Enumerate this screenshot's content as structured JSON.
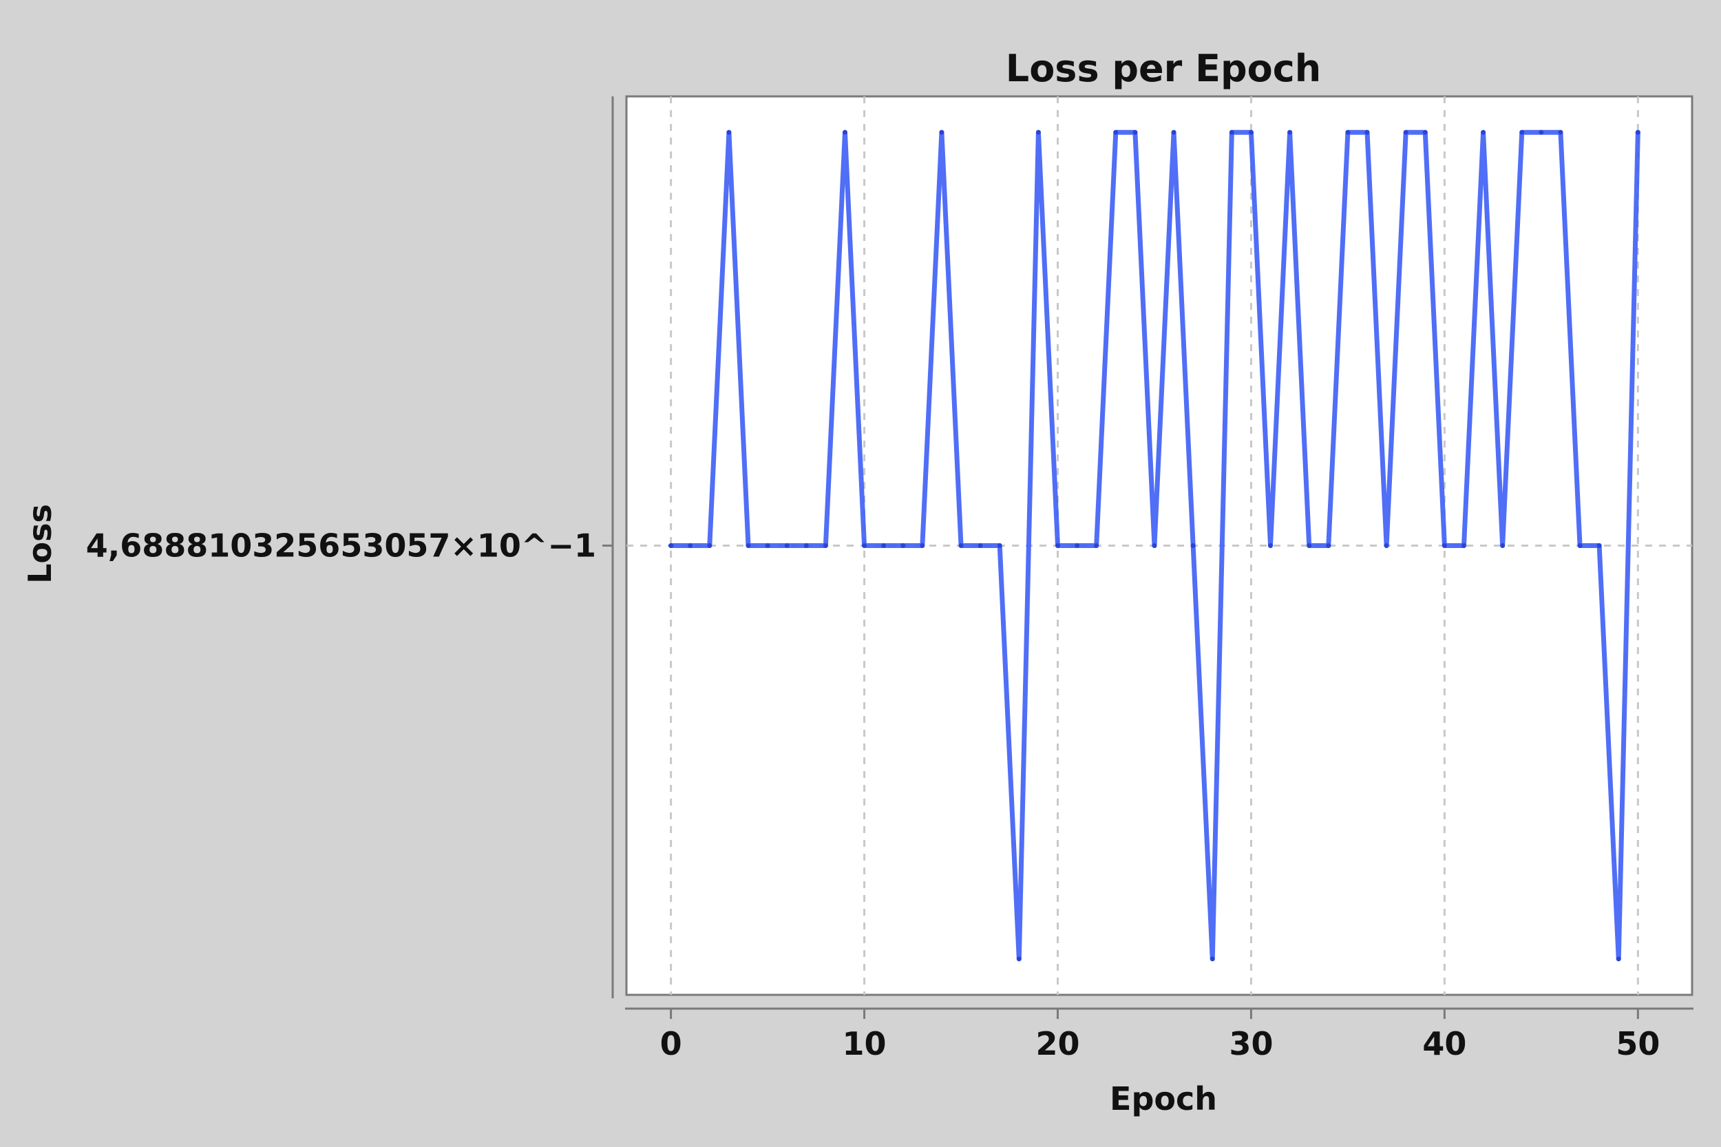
{
  "chart_data": {
    "type": "line",
    "title": "Loss per Epoch",
    "xlabel": "Epoch",
    "ylabel": "Loss",
    "x_ticks": [
      "0",
      "10",
      "20",
      "30",
      "40",
      "50"
    ],
    "y_ticks": [
      "4,688810325653057×10^−1"
    ],
    "xlim": [
      -2.3,
      52.8
    ],
    "ylim": [
      0,
      1
    ],
    "grid": true,
    "line_color": "#3d5ef5",
    "series": [
      {
        "x": [
          0,
          1,
          2,
          3,
          4,
          5,
          6,
          7,
          8,
          9,
          10,
          11,
          12,
          13,
          14,
          15,
          16,
          17,
          18,
          19,
          20,
          21,
          22,
          23,
          24,
          25,
          26,
          27,
          28,
          29,
          30,
          31,
          32,
          33,
          34,
          35,
          36,
          37,
          38,
          39,
          40,
          41,
          42,
          43,
          44,
          45,
          46,
          47,
          48,
          49,
          50
        ],
        "values": [
          0.5,
          0.5,
          0.5,
          0.96,
          0.5,
          0.5,
          0.5,
          0.5,
          0.5,
          0.96,
          0.5,
          0.5,
          0.5,
          0.5,
          0.96,
          0.5,
          0.5,
          0.5,
          0.04,
          0.96,
          0.5,
          0.5,
          0.5,
          0.96,
          0.96,
          0.5,
          0.96,
          0.5,
          0.04,
          0.96,
          0.96,
          0.5,
          0.96,
          0.5,
          0.5,
          0.96,
          0.96,
          0.5,
          0.96,
          0.96,
          0.5,
          0.5,
          0.96,
          0.5,
          0.96,
          0.96,
          0.96,
          0.5,
          0.5,
          0.04,
          0.96
        ]
      }
    ]
  }
}
